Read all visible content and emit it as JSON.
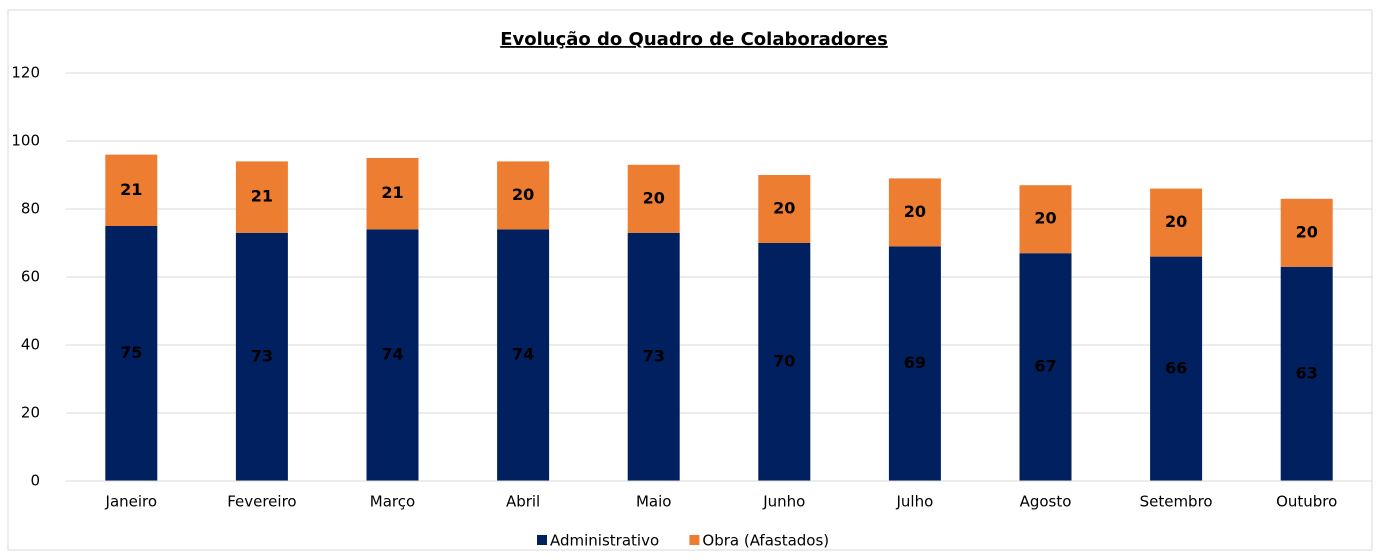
{
  "chart_data": {
    "type": "bar",
    "stacked": true,
    "title": "Evolução do Quadro de Colaboradores",
    "categories": [
      "Janeiro",
      "Fevereiro",
      "Março",
      "Abril",
      "Maio",
      "Junho",
      "Julho",
      "Agosto",
      "Setembro",
      "Outubro"
    ],
    "series": [
      {
        "name": "Administrativo",
        "color": "#002060",
        "values": [
          75,
          73,
          74,
          74,
          73,
          70,
          69,
          67,
          66,
          63
        ]
      },
      {
        "name": "Obra (Afastados)",
        "color": "#ed7d31",
        "values": [
          21,
          21,
          21,
          20,
          20,
          20,
          20,
          20,
          20,
          20
        ]
      }
    ],
    "ylim": [
      0,
      120
    ],
    "yticks": [
      0,
      20,
      40,
      60,
      80,
      100,
      120
    ],
    "grid": true,
    "legend": "bottom"
  }
}
